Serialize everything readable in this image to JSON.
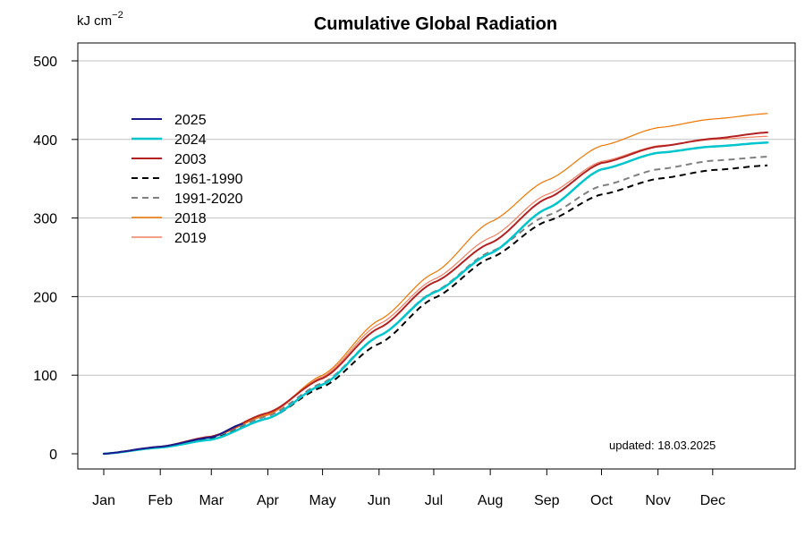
{
  "chart_data": {
    "type": "line",
    "title": "Cumulative Global Radiation",
    "ylabel_unit": "kJ cm",
    "ylabel_exponent": "−2",
    "xlabel": "",
    "ylim": [
      0,
      500
    ],
    "y_ticks": [
      "0",
      "100",
      "200",
      "300",
      "400",
      "500"
    ],
    "y_tick_values": [
      0,
      100,
      200,
      300,
      400,
      500
    ],
    "grid": "horizontal",
    "legend_position": "top-left",
    "months": [
      "Jan",
      "Feb",
      "Mar",
      "Apr",
      "May",
      "Jun",
      "Jul",
      "Aug",
      "Sep",
      "Oct",
      "Nov",
      "Dec"
    ],
    "x_ticks": [
      "Jan",
      "Feb",
      "Mar",
      "Apr",
      "May",
      "Jun",
      "Jul",
      "Aug",
      "Sep",
      "Oct",
      "Nov",
      "Dec"
    ],
    "note": "updated: 18.03.2025",
    "series": [
      {
        "name": "2025",
        "color": "#1a1a8c",
        "dash": "solid",
        "width": 2,
        "x": [
          "Jan 1",
          "Feb 1",
          "Mar 1",
          "Mar 18"
        ],
        "y": [
          0,
          9,
          21,
          38
        ]
      },
      {
        "name": "2024",
        "color": "#00c5cd",
        "dash": "solid",
        "width": 2.5,
        "x": [
          "Jan 1",
          "Feb 1",
          "Mar 1",
          "Apr 1",
          "May 1",
          "Jun 1",
          "Jul 1",
          "Aug 1",
          "Sep 1",
          "Oct 1",
          "Nov 1",
          "Dec 1",
          "Dec 31"
        ],
        "y": [
          0,
          8,
          18,
          45,
          88,
          150,
          205,
          255,
          312,
          362,
          383,
          391,
          396
        ]
      },
      {
        "name": "2003",
        "color": "#b22222",
        "dash": "solid",
        "width": 2,
        "x": [
          "Jan 1",
          "Feb 1",
          "Mar 1",
          "Apr 1",
          "May 1",
          "Jun 1",
          "Jul 1",
          "Aug 1",
          "Sep 1",
          "Oct 1",
          "Nov 1",
          "Dec 1",
          "Dec 31"
        ],
        "y": [
          0,
          9,
          22,
          52,
          96,
          160,
          218,
          268,
          325,
          370,
          391,
          401,
          409
        ]
      },
      {
        "name": "1961-1990",
        "color": "#000000",
        "dash": "dashed",
        "width": 2,
        "x": [
          "Jan 1",
          "Feb 1",
          "Mar 1",
          "Apr 1",
          "May 1",
          "Jun 1",
          "Jul 1",
          "Aug 1",
          "Sep 1",
          "Oct 1",
          "Nov 1",
          "Dec 1",
          "Dec 31"
        ],
        "y": [
          0,
          8,
          19,
          45,
          85,
          140,
          198,
          249,
          296,
          330,
          350,
          361,
          367
        ]
      },
      {
        "name": "1991-2020",
        "color": "#808080",
        "dash": "dashed",
        "width": 2,
        "x": [
          "Jan 1",
          "Feb 1",
          "Mar 1",
          "Apr 1",
          "May 1",
          "Jun 1",
          "Jul 1",
          "Aug 1",
          "Sep 1",
          "Oct 1",
          "Nov 1",
          "Dec 1",
          "Dec 31"
        ],
        "y": [
          0,
          8,
          20,
          48,
          90,
          150,
          206,
          257,
          303,
          341,
          362,
          373,
          378
        ]
      },
      {
        "name": "2018",
        "color": "#ee7600",
        "dash": "solid",
        "width": 1.2,
        "x": [
          "Jan 1",
          "Feb 1",
          "Mar 1",
          "Apr 1",
          "May 1",
          "Jun 1",
          "Jul 1",
          "Aug 1",
          "Sep 1",
          "Oct 1",
          "Nov 1",
          "Dec 1",
          "Dec 31"
        ],
        "y": [
          0,
          9,
          21,
          50,
          100,
          170,
          230,
          295,
          348,
          392,
          415,
          426,
          433
        ]
      },
      {
        "name": "2019",
        "color": "#f08060",
        "dash": "solid",
        "width": 1.2,
        "x": [
          "Jan 1",
          "Feb 1",
          "Mar 1",
          "Apr 1",
          "May 1",
          "Jun 1",
          "Jul 1",
          "Aug 1",
          "Sep 1",
          "Oct 1",
          "Nov 1",
          "Dec 1",
          "Dec 31"
        ],
        "y": [
          0,
          9,
          21,
          49,
          98,
          165,
          222,
          275,
          330,
          372,
          392,
          400,
          404
        ]
      }
    ]
  }
}
